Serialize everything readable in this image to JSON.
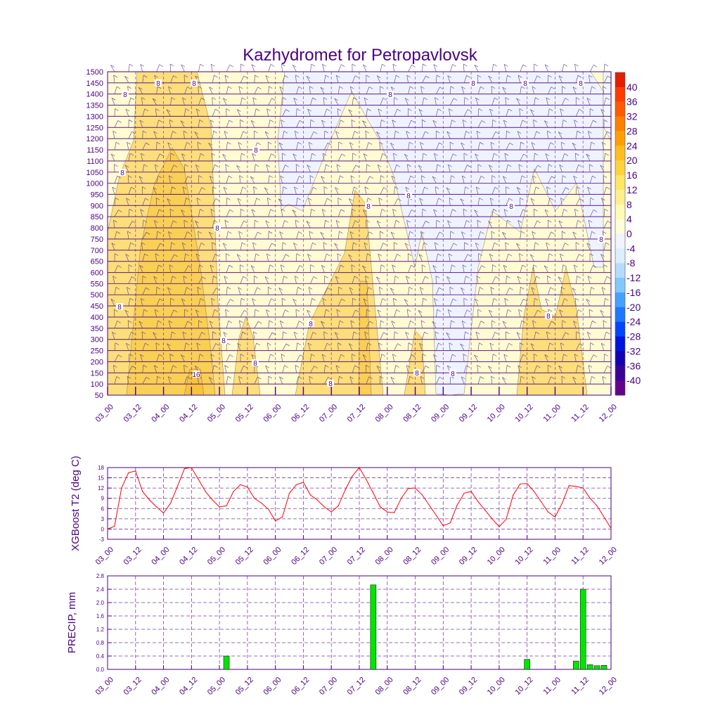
{
  "title": "Kazhydromet for Petropavlovsk",
  "colors": {
    "text": "#4b0082",
    "axis": "#4b0082",
    "grid": "#4b0082",
    "line": "#ff0000",
    "bar": "#00e600",
    "bar_edge": "#1a1a1a",
    "barb": "#5a3a8a"
  },
  "chart_data": [
    {
      "type": "heatmap",
      "name": "cross-section",
      "title": "Kazhydromet for Petropavlovsk",
      "xlabel": "",
      "ylabel": "",
      "x_ticks": [
        "03_00",
        "03_12",
        "04_00",
        "04_12",
        "05_00",
        "05_12",
        "06_00",
        "06_12",
        "07_00",
        "07_12",
        "08_00",
        "08_12",
        "09_00",
        "09_12",
        "10_00",
        "10_12",
        "11_00",
        "11_12",
        "12_00"
      ],
      "y_ticks": [
        1500,
        1450,
        1400,
        1350,
        1300,
        1250,
        1200,
        1150,
        1100,
        1050,
        1000,
        950,
        900,
        850,
        800,
        750,
        700,
        650,
        600,
        550,
        500,
        450,
        400,
        350,
        300,
        250,
        200,
        150,
        100,
        50
      ],
      "ylim": [
        50,
        1500
      ],
      "colorbar": {
        "labels": [
          40,
          36,
          32,
          28,
          24,
          20,
          16,
          12,
          8,
          4,
          0,
          -4,
          -8,
          -12,
          -16,
          -20,
          -24,
          -28,
          -32,
          -36,
          -40
        ],
        "colors": [
          "#e61e00",
          "#ff3c00",
          "#ff5a00",
          "#ff7f00",
          "#ffa000",
          "#ffbe1e",
          "#ffd23c",
          "#ffe664",
          "#fff08c",
          "#fffab4",
          "#fffdd8",
          "#f0f4ff",
          "#dceeff",
          "#b4dcff",
          "#82c8ff",
          "#46a0ff",
          "#1e78ff",
          "#0046ff",
          "#0014dc",
          "#1400b4",
          "#3c0096",
          "#64008c"
        ]
      },
      "contour_labels": [
        "8",
        "8",
        "8",
        "8",
        "8",
        "8",
        "8",
        "8",
        "8",
        "8",
        "16",
        "8",
        "8",
        "8",
        "8",
        "8",
        "8",
        "8",
        "8",
        "8",
        "8",
        "8",
        "8",
        "8",
        "8",
        "8",
        "8",
        "8",
        "8"
      ]
    },
    {
      "type": "line",
      "name": "XGBoost T2",
      "ylabel": "XGBoost T2 (deg C)",
      "ylim": [
        -3,
        18
      ],
      "y_ticks": [
        18,
        15,
        12,
        9,
        6,
        3,
        0,
        -3
      ],
      "x_ticks": [
        "03_00",
        "03_12",
        "04_00",
        "04_12",
        "05_00",
        "05_12",
        "06_00",
        "06_12",
        "07_00",
        "07_12",
        "08_00",
        "08_12",
        "09_00",
        "09_12",
        "10_00",
        "10_12",
        "11_00",
        "11_12",
        "12_00"
      ],
      "x": [
        0,
        3,
        6,
        9,
        12,
        15,
        18,
        21,
        24,
        27,
        30,
        33,
        36,
        39,
        42,
        45,
        48,
        51,
        54,
        57,
        60,
        63,
        66,
        69,
        72,
        75,
        78,
        81,
        84,
        87,
        90,
        93,
        96,
        99,
        102,
        105,
        108,
        111,
        114,
        117,
        120,
        123,
        126,
        129,
        132,
        135,
        138,
        141,
        144,
        147,
        150,
        153,
        156,
        159,
        162,
        165,
        168,
        171,
        174,
        177,
        180,
        183,
        186,
        189,
        192,
        195,
        198,
        201,
        204,
        207,
        210,
        213,
        216
      ],
      "values": [
        0,
        0.8,
        12,
        16.5,
        17,
        11,
        8.5,
        6.5,
        4.7,
        7.5,
        12.5,
        17.7,
        18,
        14.5,
        11,
        8.5,
        6.5,
        6.8,
        11,
        13,
        12.3,
        9,
        7.6,
        5.8,
        2.4,
        3.5,
        10.5,
        13,
        13.7,
        10,
        8.5,
        6.5,
        5,
        6.8,
        11.5,
        15.5,
        18,
        14.5,
        10.5,
        6.5,
        5,
        4.8,
        9,
        11.9,
        12,
        10,
        7,
        4,
        1,
        1.8,
        7,
        10.5,
        11,
        8,
        5.5,
        3,
        0.7,
        2.8,
        9.9,
        13.2,
        13.3,
        11,
        8,
        5,
        3.5,
        7.5,
        12.7,
        12.5,
        12,
        9,
        6.8,
        3.5,
        0.2
      ]
    },
    {
      "type": "bar",
      "name": "PRECIP",
      "ylabel": "PRECIP, mm",
      "ylim": [
        0,
        2.8
      ],
      "y_ticks": [
        2.8,
        2.4,
        2.0,
        1.6,
        1.2,
        0.8,
        0.4,
        0.0
      ],
      "x_ticks": [
        "03_00",
        "03_12",
        "04_00",
        "04_12",
        "05_00",
        "05_12",
        "06_00",
        "06_12",
        "07_00",
        "07_12",
        "08_00",
        "08_12",
        "09_00",
        "09_12",
        "10_00",
        "10_12",
        "11_00",
        "11_12",
        "12_00"
      ],
      "x": [
        51,
        114,
        180,
        201,
        204,
        207,
        210,
        213
      ],
      "values": [
        0.4,
        2.53,
        0.3,
        0.25,
        2.4,
        0.14,
        0.11,
        0.12
      ]
    }
  ]
}
